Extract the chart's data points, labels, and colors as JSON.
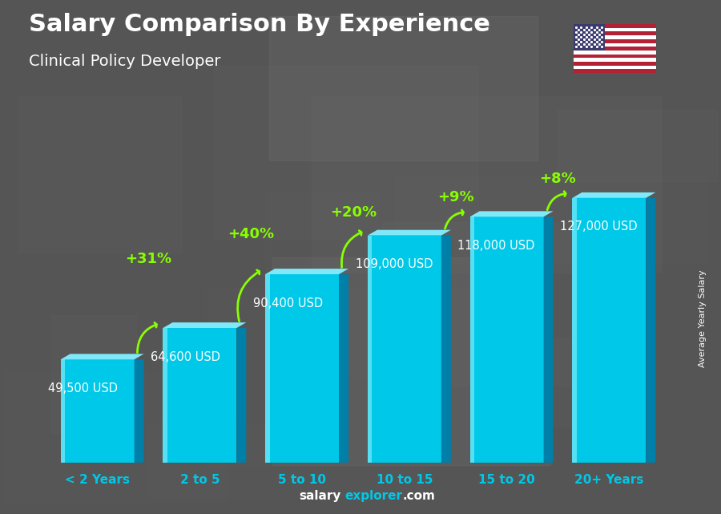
{
  "title": "Salary Comparison By Experience",
  "subtitle": "Clinical Policy Developer",
  "categories": [
    "< 2 Years",
    "2 to 5",
    "5 to 10",
    "10 to 15",
    "15 to 20",
    "20+ Years"
  ],
  "values": [
    49500,
    64600,
    90400,
    109000,
    118000,
    127000
  ],
  "salary_labels": [
    "49,500 USD",
    "64,600 USD",
    "90,400 USD",
    "109,000 USD",
    "118,000 USD",
    "127,000 USD"
  ],
  "pct_changes": [
    "+31%",
    "+40%",
    "+20%",
    "+9%",
    "+8%"
  ],
  "bar_face_color": "#00C8E8",
  "bar_right_color": "#007FA8",
  "bar_top_color": "#80E8F8",
  "bar_highlight_color": "#AAFAFF",
  "bg_color": "#555555",
  "title_color": "#FFFFFF",
  "subtitle_color": "#FFFFFF",
  "label_color": "#FFFFFF",
  "pct_color": "#88FF00",
  "arrow_color": "#88FF00",
  "xtick_color": "#00C8E8",
  "ylabel_color": "#FFFFFF",
  "footer_text_color": "#FFFFFF",
  "footer_explorer_color": "#00C8E8",
  "ylabel": "Average Yearly Salary",
  "ylim_max": 148000,
  "bar_width": 0.72,
  "xlim_min": -0.6,
  "xlim_max": 5.6
}
